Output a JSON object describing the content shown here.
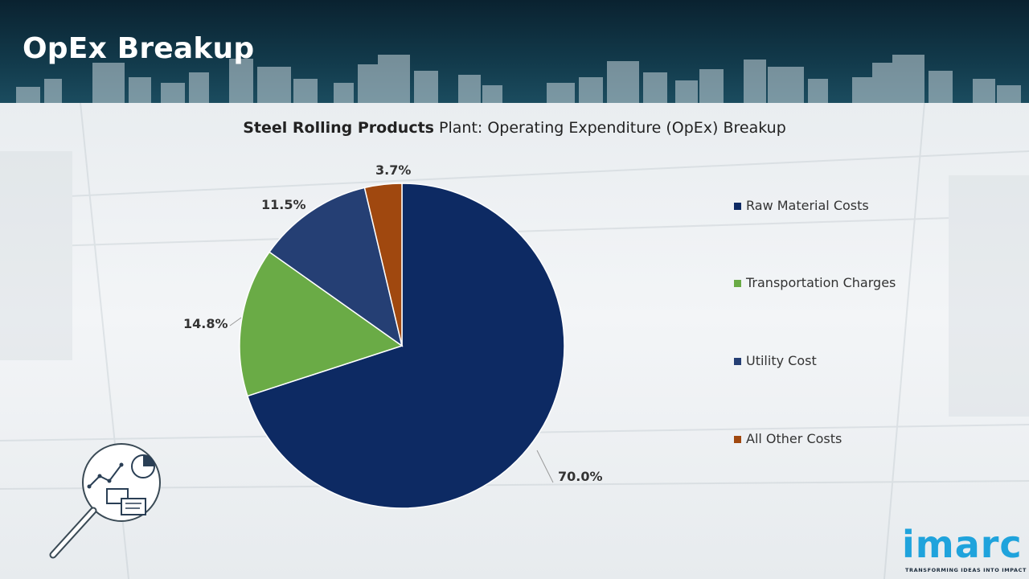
{
  "header": {
    "title": "OpEx Breakup"
  },
  "chart_data": {
    "type": "pie",
    "title_bold": "Steel Rolling Products",
    "title_rest": " Plant: Operating Expenditure (OpEx) Breakup",
    "slices": [
      {
        "label": "Raw Material Costs",
        "value": 70.0,
        "display": "70.0%",
        "color": "#0d2a63"
      },
      {
        "label": "Transportation Charges",
        "value": 14.8,
        "display": "14.8%",
        "color": "#6aab46"
      },
      {
        "label": "Utility Cost",
        "value": 11.5,
        "display": "11.5%",
        "color": "#253f74"
      },
      {
        "label": "All Other Costs",
        "value": 3.7,
        "display": "3.7%",
        "color": "#a0480f"
      }
    ],
    "legend_position": "right"
  },
  "logo": {
    "word": "imarc",
    "tagline": "TRANSFORMING IDEAS INTO IMPACT"
  }
}
